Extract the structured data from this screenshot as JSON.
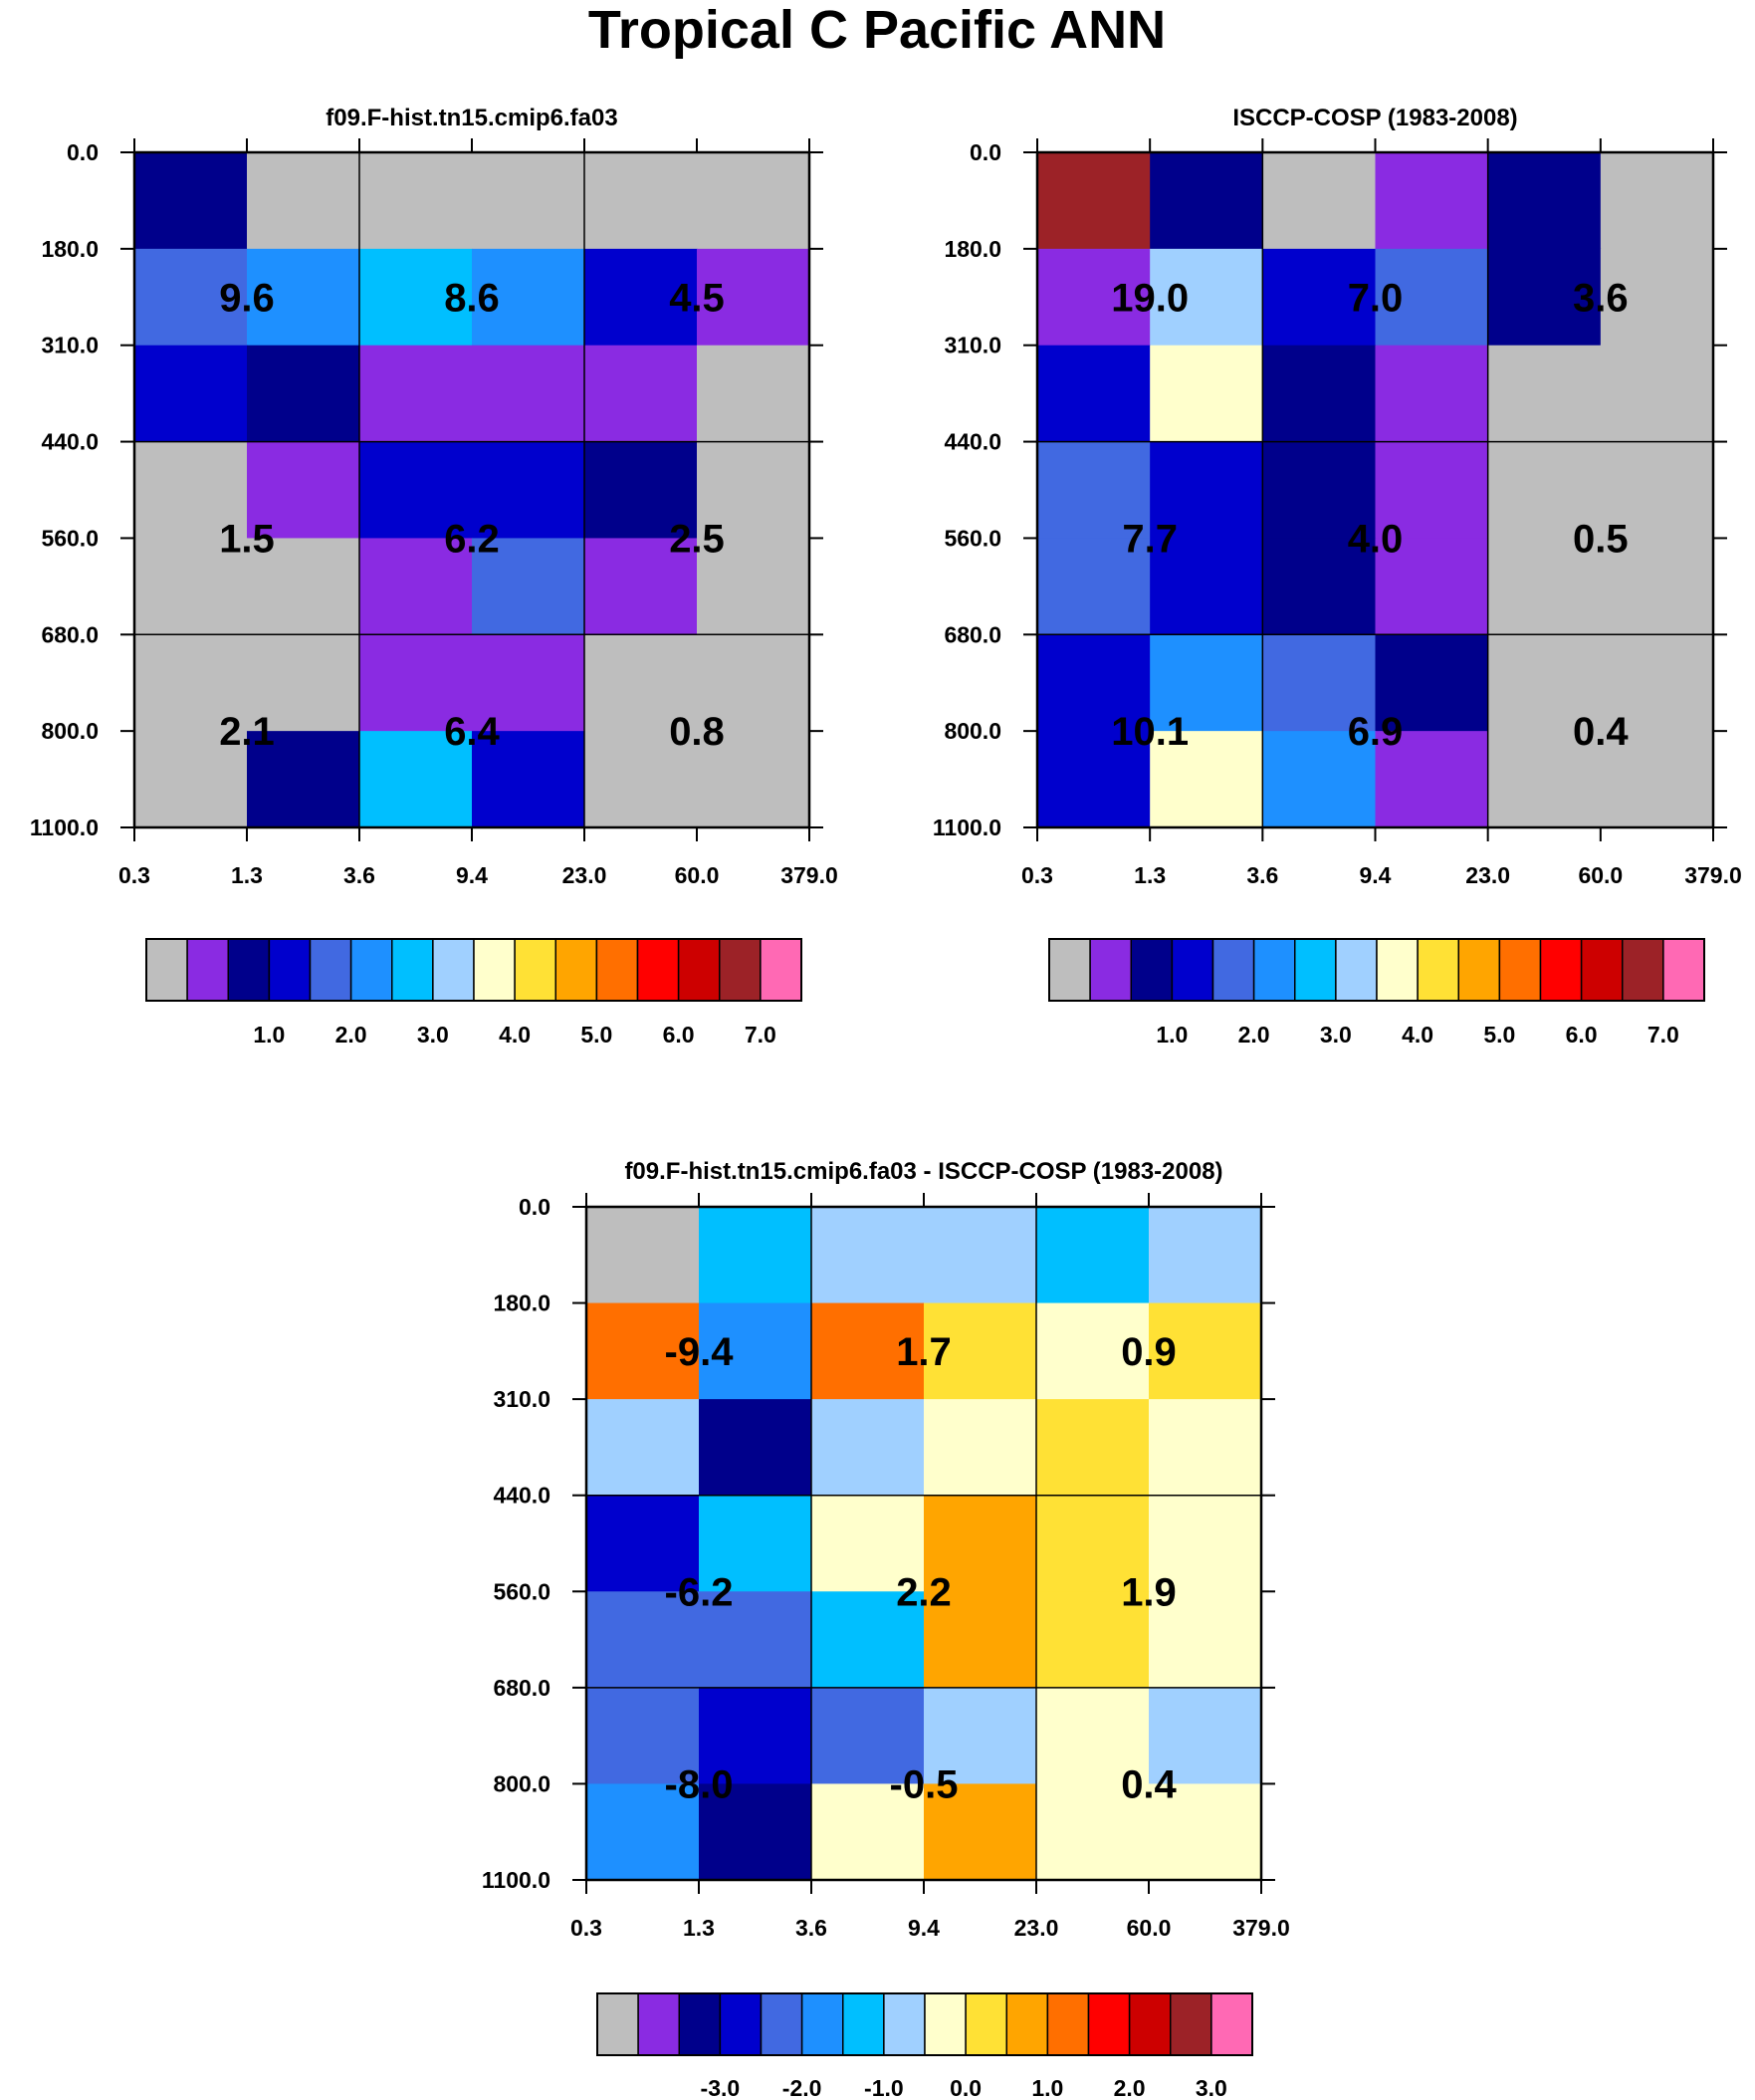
{
  "figure": {
    "title": "Tropical C Pacific ANN"
  },
  "chart_data": [
    {
      "type": "heatmap",
      "title": "f09.F-hist.tn15.cmip6.fa03",
      "xlabel": "",
      "ylabel": "",
      "x_ticks": [
        "0.3",
        "1.3",
        "3.6",
        "9.4",
        "23.0",
        "60.0",
        "379.0"
      ],
      "y_ticks": [
        "0.0",
        "180.0",
        "310.0",
        "440.0",
        "560.0",
        "680.0",
        "800.0",
        "1100.0"
      ],
      "cells": [
        [
          "navy",
          "gray",
          "gray",
          "gray",
          "gray",
          "gray"
        ],
        [
          "royal",
          "dodger",
          "deepsky",
          "dodger",
          "blue",
          "purple"
        ],
        [
          "blue",
          "navy",
          "purple",
          "purple",
          "purple",
          "gray"
        ],
        [
          "gray",
          "purple",
          "blue",
          "blue",
          "navy",
          "gray"
        ],
        [
          "gray",
          "gray",
          "purple",
          "royal",
          "purple",
          "gray"
        ],
        [
          "gray",
          "gray",
          "purple",
          "purple",
          "gray",
          "gray"
        ],
        [
          "gray",
          "navy",
          "deepsky",
          "blue",
          "gray",
          "gray"
        ]
      ],
      "block_labels": [
        [
          "9.6",
          "8.6",
          "4.5"
        ],
        [
          "1.5",
          "6.2",
          "2.5"
        ],
        [
          "2.1",
          "6.4",
          "0.8"
        ]
      ],
      "colorbar": {
        "labels": [
          "1.0",
          "2.0",
          "3.0",
          "4.0",
          "5.0",
          "6.0",
          "7.0"
        ]
      }
    },
    {
      "type": "heatmap",
      "title": "ISCCP-COSP (1983-2008)",
      "xlabel": "",
      "ylabel": "",
      "x_ticks": [
        "0.3",
        "1.3",
        "3.6",
        "9.4",
        "23.0",
        "60.0",
        "379.0"
      ],
      "y_ticks": [
        "0.0",
        "180.0",
        "310.0",
        "440.0",
        "560.0",
        "680.0",
        "800.0",
        "1100.0"
      ],
      "cells": [
        [
          "brown",
          "navy",
          "gray",
          "purple",
          "navy",
          "gray"
        ],
        [
          "purple",
          "lightblue",
          "blue",
          "royal",
          "navy",
          "gray"
        ],
        [
          "blue",
          "cream",
          "navy",
          "purple",
          "gray",
          "gray"
        ],
        [
          "royal",
          "blue",
          "navy",
          "purple",
          "gray",
          "gray"
        ],
        [
          "royal",
          "blue",
          "navy",
          "purple",
          "gray",
          "gray"
        ],
        [
          "blue",
          "dodger",
          "royal",
          "navy",
          "gray",
          "gray"
        ],
        [
          "blue",
          "cream",
          "dodger",
          "purple",
          "gray",
          "gray"
        ]
      ],
      "block_labels": [
        [
          "19.0",
          "7.0",
          "3.6"
        ],
        [
          "7.7",
          "4.0",
          "0.5"
        ],
        [
          "10.1",
          "6.9",
          "0.4"
        ]
      ],
      "colorbar": {
        "labels": [
          "1.0",
          "2.0",
          "3.0",
          "4.0",
          "5.0",
          "6.0",
          "7.0"
        ]
      }
    },
    {
      "type": "heatmap",
      "title": "f09.F-hist.tn15.cmip6.fa03 - ISCCP-COSP (1983-2008)",
      "xlabel": "",
      "ylabel": "",
      "x_ticks": [
        "0.3",
        "1.3",
        "3.6",
        "9.4",
        "23.0",
        "60.0",
        "379.0"
      ],
      "y_ticks": [
        "0.0",
        "180.0",
        "310.0",
        "440.0",
        "560.0",
        "680.0",
        "800.0",
        "1100.0"
      ],
      "cells": [
        [
          "gray",
          "deepsky",
          "lightblue",
          "lightblue",
          "deepsky",
          "lightblue"
        ],
        [
          "orange",
          "dodger",
          "orange",
          "yellow",
          "cream",
          "yellow"
        ],
        [
          "lightblue",
          "navy",
          "lightblue",
          "cream",
          "yellow",
          "cream"
        ],
        [
          "blue",
          "deepsky",
          "cream",
          "amber",
          "yellow",
          "cream"
        ],
        [
          "royal",
          "royal",
          "deepsky",
          "amber",
          "yellow",
          "cream"
        ],
        [
          "royal",
          "blue",
          "royal",
          "lightblue",
          "cream",
          "lightblue"
        ],
        [
          "dodger",
          "navy",
          "cream",
          "amber",
          "cream",
          "cream"
        ]
      ],
      "block_labels": [
        [
          "-9.4",
          "1.7",
          "0.9"
        ],
        [
          "-6.2",
          "2.2",
          "1.9"
        ],
        [
          "-8.0",
          "-0.5",
          "0.4"
        ]
      ],
      "colorbar": {
        "labels": [
          "-3.0",
          "-2.0",
          "-1.0",
          "0.0",
          "1.0",
          "2.0",
          "3.0"
        ]
      }
    }
  ],
  "palette": {
    "gray": "#bebebe",
    "purple": "#8a2be2",
    "navy": "#00008b",
    "blue": "#0000cd",
    "royal": "#4169e1",
    "dodger": "#1e90ff",
    "deepsky": "#00bfff",
    "lightblue": "#a0d0ff",
    "cream": "#ffffcc",
    "yellow": "#ffe135",
    "amber": "#ffa500",
    "orange": "#ff6f00",
    "red": "#ff0000",
    "darkred": "#cd0000",
    "brown": "#9c2227",
    "pink": "#ff69b4"
  },
  "colorbar_order": [
    "gray",
    "purple",
    "navy",
    "blue",
    "royal",
    "dodger",
    "deepsky",
    "lightblue",
    "cream",
    "yellow",
    "amber",
    "orange",
    "red",
    "darkred",
    "brown",
    "pink"
  ]
}
